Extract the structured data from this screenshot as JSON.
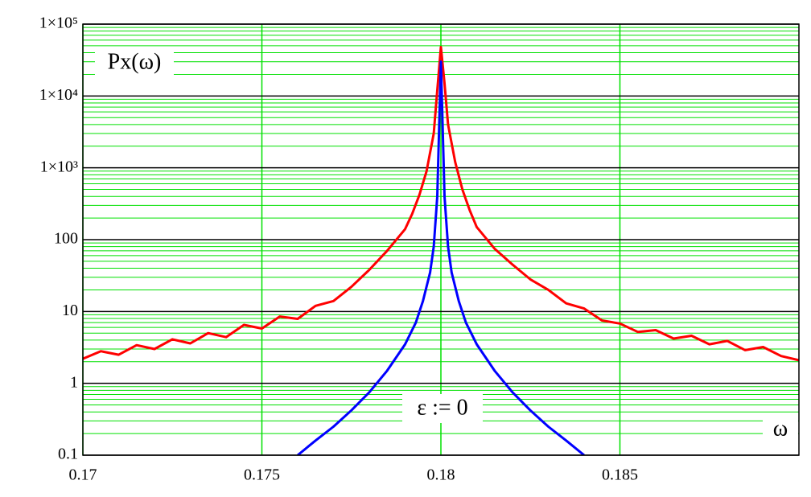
{
  "chart_data": {
    "type": "line",
    "y_label": "Px(ω)",
    "x_label": "ω",
    "annotations": [
      "ε := 0"
    ],
    "log_y": true,
    "grid": true,
    "minor_grid": true,
    "xlim": [
      0.17,
      0.19
    ],
    "xticks": [
      0.17,
      0.175,
      0.18,
      0.185
    ],
    "ylim": [
      0.1,
      100000
    ],
    "yticks": [
      0.1,
      1,
      10,
      100,
      {
        "value": 1000,
        "label": "1×10³"
      },
      {
        "value": 10000,
        "label": "1×10⁴"
      },
      {
        "value": 100000,
        "label": "1×10⁵"
      }
    ],
    "series": [
      {
        "color": "#ff0000",
        "x": [
          0.17,
          0.1705,
          0.171,
          0.1715,
          0.172,
          0.1725,
          0.173,
          0.1735,
          0.174,
          0.1745,
          0.175,
          0.1755,
          0.176,
          0.1765,
          0.177,
          0.1775,
          0.178,
          0.1785,
          0.179,
          0.1792,
          0.1794,
          0.1796,
          0.1798,
          0.1799,
          0.18,
          0.1801,
          0.1802,
          0.1804,
          0.1806,
          0.1808,
          0.181,
          0.1815,
          0.182,
          0.1825,
          0.183,
          0.1835,
          0.184,
          0.1845,
          0.185,
          0.1855,
          0.186,
          0.1865,
          0.187,
          0.1875,
          0.188,
          0.1885,
          0.189,
          0.1895,
          0.19
        ],
        "values": [
          2.2,
          2.8,
          2.5,
          3.4,
          3.0,
          4.1,
          3.6,
          5.0,
          4.4,
          6.5,
          5.8,
          8.5,
          7.9,
          12,
          14,
          22,
          38,
          70,
          140,
          230,
          420,
          900,
          3000,
          12000,
          48000,
          15000,
          4000,
          1200,
          500,
          260,
          150,
          75,
          45,
          28,
          20,
          13,
          11,
          7.5,
          6.8,
          5.2,
          5.5,
          4.2,
          4.6,
          3.5,
          3.9,
          2.9,
          3.2,
          2.4,
          2.1
        ]
      },
      {
        "color": "#0000ff",
        "x": [
          0.176,
          0.1765,
          0.177,
          0.1775,
          0.178,
          0.1785,
          0.179,
          0.1793,
          0.1795,
          0.1797,
          0.1798,
          0.1799,
          0.18,
          0.1801,
          0.1802,
          0.1803,
          0.1805,
          0.1807,
          0.181,
          0.1815,
          0.182,
          0.1825,
          0.183,
          0.1835,
          0.184
        ],
        "values": [
          0.1,
          0.16,
          0.25,
          0.42,
          0.75,
          1.5,
          3.5,
          7,
          14,
          35,
          80,
          400,
          30000,
          400,
          80,
          35,
          14,
          7,
          3.5,
          1.5,
          0.75,
          0.42,
          0.25,
          0.16,
          0.1
        ]
      }
    ]
  }
}
